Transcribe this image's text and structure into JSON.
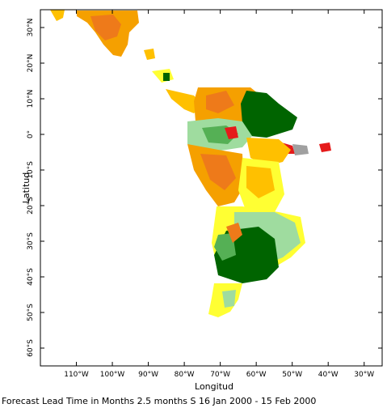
{
  "map": {
    "x_axis_label": "Longitud",
    "y_axis_label": "Latitud",
    "caption": "Forecast Lead Time in Months 2.5 months S 16 Jan 2000 - 15 Feb 2000",
    "lon_range": [
      -120,
      -25
    ],
    "lat_range": [
      -65,
      35
    ],
    "lon_ticks": [
      {
        "value": -110,
        "label": "110°W"
      },
      {
        "value": -100,
        "label": "100°W"
      },
      {
        "value": -90,
        "label": "90°W"
      },
      {
        "value": -80,
        "label": "80°W"
      },
      {
        "value": -70,
        "label": "70°W"
      },
      {
        "value": -60,
        "label": "60°W"
      },
      {
        "value": -50,
        "label": "50°W"
      },
      {
        "value": -40,
        "label": "40°W"
      },
      {
        "value": -30,
        "label": "30°W"
      }
    ],
    "lat_ticks": [
      {
        "value": 30,
        "label": "30°N"
      },
      {
        "value": 20,
        "label": "20°N"
      },
      {
        "value": 10,
        "label": "10°N"
      },
      {
        "value": 0,
        "label": "0°"
      },
      {
        "value": -10,
        "label": "10°S"
      },
      {
        "value": -20,
        "label": "20°S"
      },
      {
        "value": -30,
        "label": "30°S"
      },
      {
        "value": -40,
        "label": "40°S"
      },
      {
        "value": -50,
        "label": "50°S"
      },
      {
        "value": -60,
        "label": "60°S"
      }
    ],
    "colors": {
      "dark_green": "#006400",
      "medium_green": "#55b055",
      "light_green": "#9fdc9f",
      "yellow": "#ffff33",
      "light_orange": "#ffc000",
      "orange": "#f5a000",
      "dark_orange": "#ee7a1a",
      "red": "#e51a1a",
      "gray": "#a0a0a0"
    }
  }
}
